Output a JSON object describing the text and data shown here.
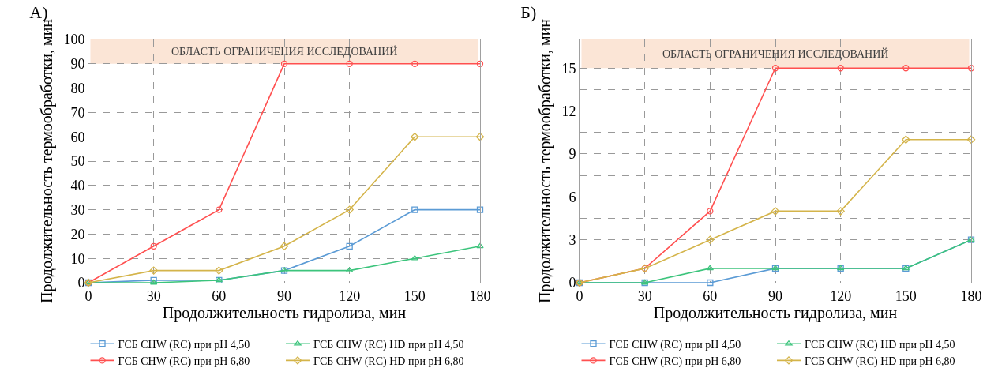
{
  "chart_data": [
    {
      "type": "line",
      "title": "А)",
      "xlabel": "Продолжительность гидролиза, мин",
      "ylabel": "Продолжительность термообработки, мин",
      "x": [
        0,
        30,
        60,
        90,
        120,
        150,
        180
      ],
      "xlim": [
        0,
        180
      ],
      "xticks": [
        0,
        30,
        60,
        90,
        120,
        150,
        180
      ],
      "ylim": [
        0,
        100
      ],
      "yticks": [
        0,
        10,
        20,
        30,
        40,
        50,
        60,
        70,
        80,
        90,
        100
      ],
      "grid": true,
      "legend": "bottom",
      "line_style": "solid",
      "bands": [
        {
          "axis": "y",
          "from": 90,
          "to": 100,
          "label": "ОБЛАСТЬ ОГРАНИЧЕНИЯ ИССЛЕДОВАНИЙ",
          "color": "#fbe5d6"
        }
      ],
      "series": [
        {
          "name": "ГСБ CHW (RC) при pH 4,50",
          "color": "#5b9bd5",
          "marker": "square",
          "values": [
            0,
            1,
            1,
            5,
            15,
            30,
            30
          ]
        },
        {
          "name": "ГСБ CHW (RC) HD при pH 4,50",
          "color": "#3cc47c",
          "marker": "triangle",
          "values": [
            0,
            0,
            1,
            5,
            5,
            10,
            15
          ]
        },
        {
          "name": "ГСБ CHW (RC) при pH 6,80",
          "color": "#ff5050",
          "marker": "circle",
          "values": [
            0,
            15,
            30,
            90,
            90,
            90,
            90
          ]
        },
        {
          "name": "ГСБ CHW (RC) HD при pH 6,80",
          "color": "#d4b44a",
          "marker": "diamond",
          "values": [
            0,
            5,
            5,
            15,
            30,
            60,
            60
          ]
        }
      ]
    },
    {
      "type": "line",
      "title": "Б)",
      "xlabel": "Продолжительность гидролиза, мин",
      "ylabel": "Продолжительность термообработки, мин",
      "x": [
        0,
        30,
        60,
        90,
        120,
        150,
        180
      ],
      "xlim": [
        0,
        180
      ],
      "xticks": [
        0,
        30,
        60,
        90,
        120,
        150,
        180
      ],
      "ylim": [
        0,
        17
      ],
      "yticks": [
        0,
        {
          "value": 1.5,
          "label": null
        },
        3,
        {
          "value": 4.5,
          "label": null
        },
        6,
        {
          "value": 7.5,
          "label": null
        },
        9,
        {
          "value": 10.5,
          "label": null
        },
        12,
        {
          "value": 13.5,
          "label": null
        },
        15,
        {
          "value": 16.5,
          "label": null
        }
      ],
      "grid": true,
      "legend": "bottom",
      "line_style": "solid",
      "bands": [
        {
          "axis": "y",
          "from": 15,
          "to": 17,
          "label": "ОБЛАСТЬ ОГРАНИЧЕНИЯ ИССЛЕДОВАНИЙ",
          "color": "#fbe5d6"
        }
      ],
      "series": [
        {
          "name": "ГСБ CHW (RC) при pH 4,50",
          "color": "#5b9bd5",
          "marker": "square",
          "values": [
            0,
            0,
            0,
            1,
            1,
            1,
            3
          ]
        },
        {
          "name": "ГСБ CHW (RC) HD при pH 4,50",
          "color": "#3cc47c",
          "marker": "triangle",
          "values": [
            0,
            0,
            1,
            1,
            1,
            1,
            3
          ]
        },
        {
          "name": "ГСБ CHW (RC) при pH 6,80",
          "color": "#ff5050",
          "marker": "circle",
          "values": [
            0,
            1,
            5,
            15,
            15,
            15,
            15
          ]
        },
        {
          "name": "ГСБ CHW (RC) HD при pH 6,80",
          "color": "#d4b44a",
          "marker": "diamond",
          "values": [
            0,
            1,
            3,
            5,
            5,
            10,
            10
          ]
        }
      ]
    }
  ]
}
